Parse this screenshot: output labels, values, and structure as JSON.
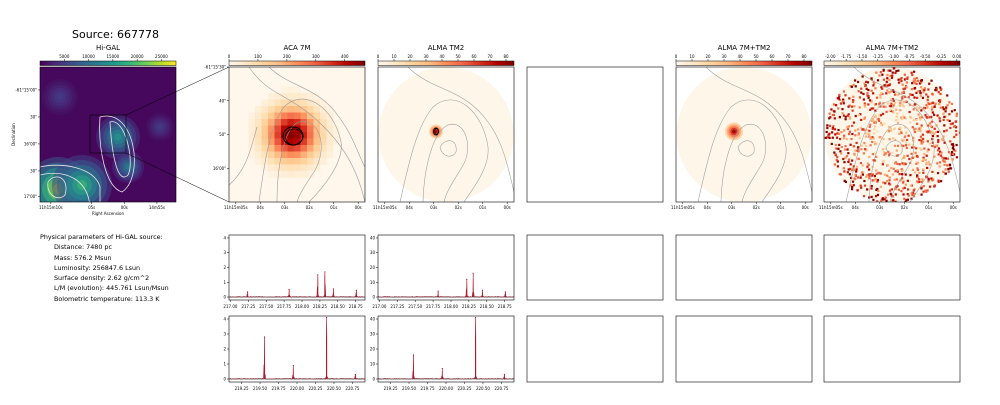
{
  "source_title": "Source: 667778",
  "params": {
    "heading": "Physical parameters of Hi-GAL source:",
    "lines": [
      "Distance: 7480 pc",
      "Mass: 576.2 Msun",
      "Luminosity: 256847.6 Lsun",
      "Surface density: 2.62 g/cm^2",
      "L/M (evolution): 445.761 Lsun/Msun",
      "Bolometric temperature: 113.3 K"
    ]
  },
  "colors": {
    "background": "#ffffff",
    "viridis_dark": "#440154",
    "viridis_bright": "#fde725",
    "orrd_light": "#fff7ec",
    "orrd_dark": "#7f0000",
    "spectrum_line": "#b2182b",
    "contour": "#9a9a9a"
  },
  "chart_data": [
    {
      "type": "heatmap",
      "id": "higal",
      "title": "Hi-GAL",
      "colormap": "viridis",
      "colorbar_ticks": [
        "5000",
        "10000",
        "15000",
        "20000",
        "25000"
      ],
      "colorbar_range": [
        0,
        28000
      ],
      "xlabel": "Right Ascension",
      "ylabel": "Declination",
      "xticks": [
        "11h15m10s",
        "05s",
        "00s",
        "14m55s"
      ],
      "yticks": [
        "-61°15'00\"",
        "30\"",
        "16'00\"",
        "30\"",
        "17'00\""
      ]
    },
    {
      "type": "heatmap",
      "id": "aca7m",
      "title": "ACA 7M",
      "colormap": "OrRd",
      "colorbar_ticks": [
        "0",
        "100",
        "200",
        "300",
        "400"
      ],
      "colorbar_range": [
        0,
        470
      ],
      "xticks": [
        "11h15m05s",
        "04s",
        "03s",
        "02s",
        "01s",
        "00s"
      ],
      "yticks": [
        "-61°15'30\"",
        "40\"",
        "50\"",
        "16'00\""
      ]
    },
    {
      "type": "heatmap",
      "id": "tm2",
      "title": "ALMA TM2",
      "colormap": "OrRd",
      "colorbar_ticks": [
        "0",
        "10",
        "20",
        "30",
        "40",
        "50",
        "60",
        "70",
        "80"
      ],
      "colorbar_range": [
        0,
        85
      ],
      "xticks": [
        "11h15m05s",
        "04s",
        "03s",
        "02s",
        "01s",
        "00s"
      ]
    },
    {
      "type": "heatmap",
      "id": "empty",
      "title": ""
    },
    {
      "type": "heatmap",
      "id": "7mtm2",
      "title": "ALMA 7M+TM2",
      "colormap": "OrRd",
      "colorbar_ticks": [
        "0",
        "10",
        "20",
        "30",
        "40",
        "50",
        "60",
        "70",
        "80"
      ],
      "colorbar_range": [
        0,
        85
      ],
      "xticks": [
        "11h15m05s",
        "04s",
        "03s",
        "02s",
        "01s",
        "00s"
      ]
    },
    {
      "type": "heatmap",
      "id": "7mtm2log",
      "title": "ALMA 7M+TM2",
      "colormap": "OrRd",
      "colorbar_ticks": [
        "-2.00",
        "-1.75",
        "-1.50",
        "-1.25",
        "-1.00",
        "-0.75",
        "-0.50",
        "-0.25",
        "0.00"
      ],
      "colorbar_range": [
        -2.1,
        0.05
      ],
      "xticks": [
        "11h15m05s",
        "04s",
        "03s",
        "02s",
        "01s",
        "00s"
      ]
    },
    {
      "type": "line",
      "id": "spec_aca_217",
      "xlim": [
        216.98,
        218.88
      ],
      "ylim": [
        -0.2,
        4.2
      ],
      "xticks": [
        "217.00",
        "217.25",
        "217.50",
        "217.75",
        "218.00",
        "218.25",
        "218.50",
        "218.75"
      ],
      "yticks": [
        "0",
        "1",
        "2",
        "3",
        "4"
      ],
      "peaks": [
        {
          "x": 217.24,
          "y": 0.35
        },
        {
          "x": 217.82,
          "y": 0.5
        },
        {
          "x": 218.22,
          "y": 1.5
        },
        {
          "x": 218.32,
          "y": 1.7
        },
        {
          "x": 218.44,
          "y": 0.55
        },
        {
          "x": 218.76,
          "y": 0.45
        }
      ]
    },
    {
      "type": "line",
      "id": "spec_tm2_217",
      "xlim": [
        216.98,
        218.88
      ],
      "ylim": [
        -2,
        42
      ],
      "xticks": [
        "217.00",
        "217.25",
        "217.50",
        "217.75",
        "218.00",
        "218.25",
        "218.50",
        "218.75"
      ],
      "yticks": [
        "0",
        "10",
        "20",
        "30",
        "40"
      ],
      "peaks": [
        {
          "x": 217.82,
          "y": 4.0
        },
        {
          "x": 218.22,
          "y": 12.0
        },
        {
          "x": 218.31,
          "y": 16.0
        },
        {
          "x": 218.44,
          "y": 4.5
        },
        {
          "x": 218.76,
          "y": 3.5
        }
      ]
    },
    {
      "type": "line",
      "id": "empty_r2a"
    },
    {
      "type": "line",
      "id": "empty_r2b"
    },
    {
      "type": "line",
      "id": "empty_r2c"
    },
    {
      "type": "line",
      "id": "spec_aca_219",
      "xlim": [
        219.08,
        220.92
      ],
      "ylim": [
        -0.2,
        4.2
      ],
      "xticks": [
        "219.25",
        "219.50",
        "219.75",
        "220.00",
        "220.25",
        "220.50",
        "220.75"
      ],
      "yticks": [
        "0",
        "1",
        "2",
        "3",
        "4"
      ],
      "peaks": [
        {
          "x": 219.56,
          "y": 2.8
        },
        {
          "x": 219.95,
          "y": 0.9
        },
        {
          "x": 220.4,
          "y": 4.1
        },
        {
          "x": 220.79,
          "y": 0.3
        }
      ]
    },
    {
      "type": "line",
      "id": "spec_tm2_219",
      "xlim": [
        219.08,
        220.92
      ],
      "ylim": [
        -2,
        42
      ],
      "xticks": [
        "219.25",
        "219.50",
        "219.75",
        "220.00",
        "220.25",
        "220.50",
        "220.75"
      ],
      "yticks": [
        "0",
        "10",
        "20",
        "30",
        "40"
      ],
      "peaks": [
        {
          "x": 219.56,
          "y": 16.0
        },
        {
          "x": 219.95,
          "y": 7.0
        },
        {
          "x": 220.4,
          "y": 41.0
        },
        {
          "x": 220.79,
          "y": 3.0
        }
      ]
    },
    {
      "type": "line",
      "id": "empty_r3a"
    },
    {
      "type": "line",
      "id": "empty_r3b"
    },
    {
      "type": "line",
      "id": "empty_r3c"
    }
  ]
}
